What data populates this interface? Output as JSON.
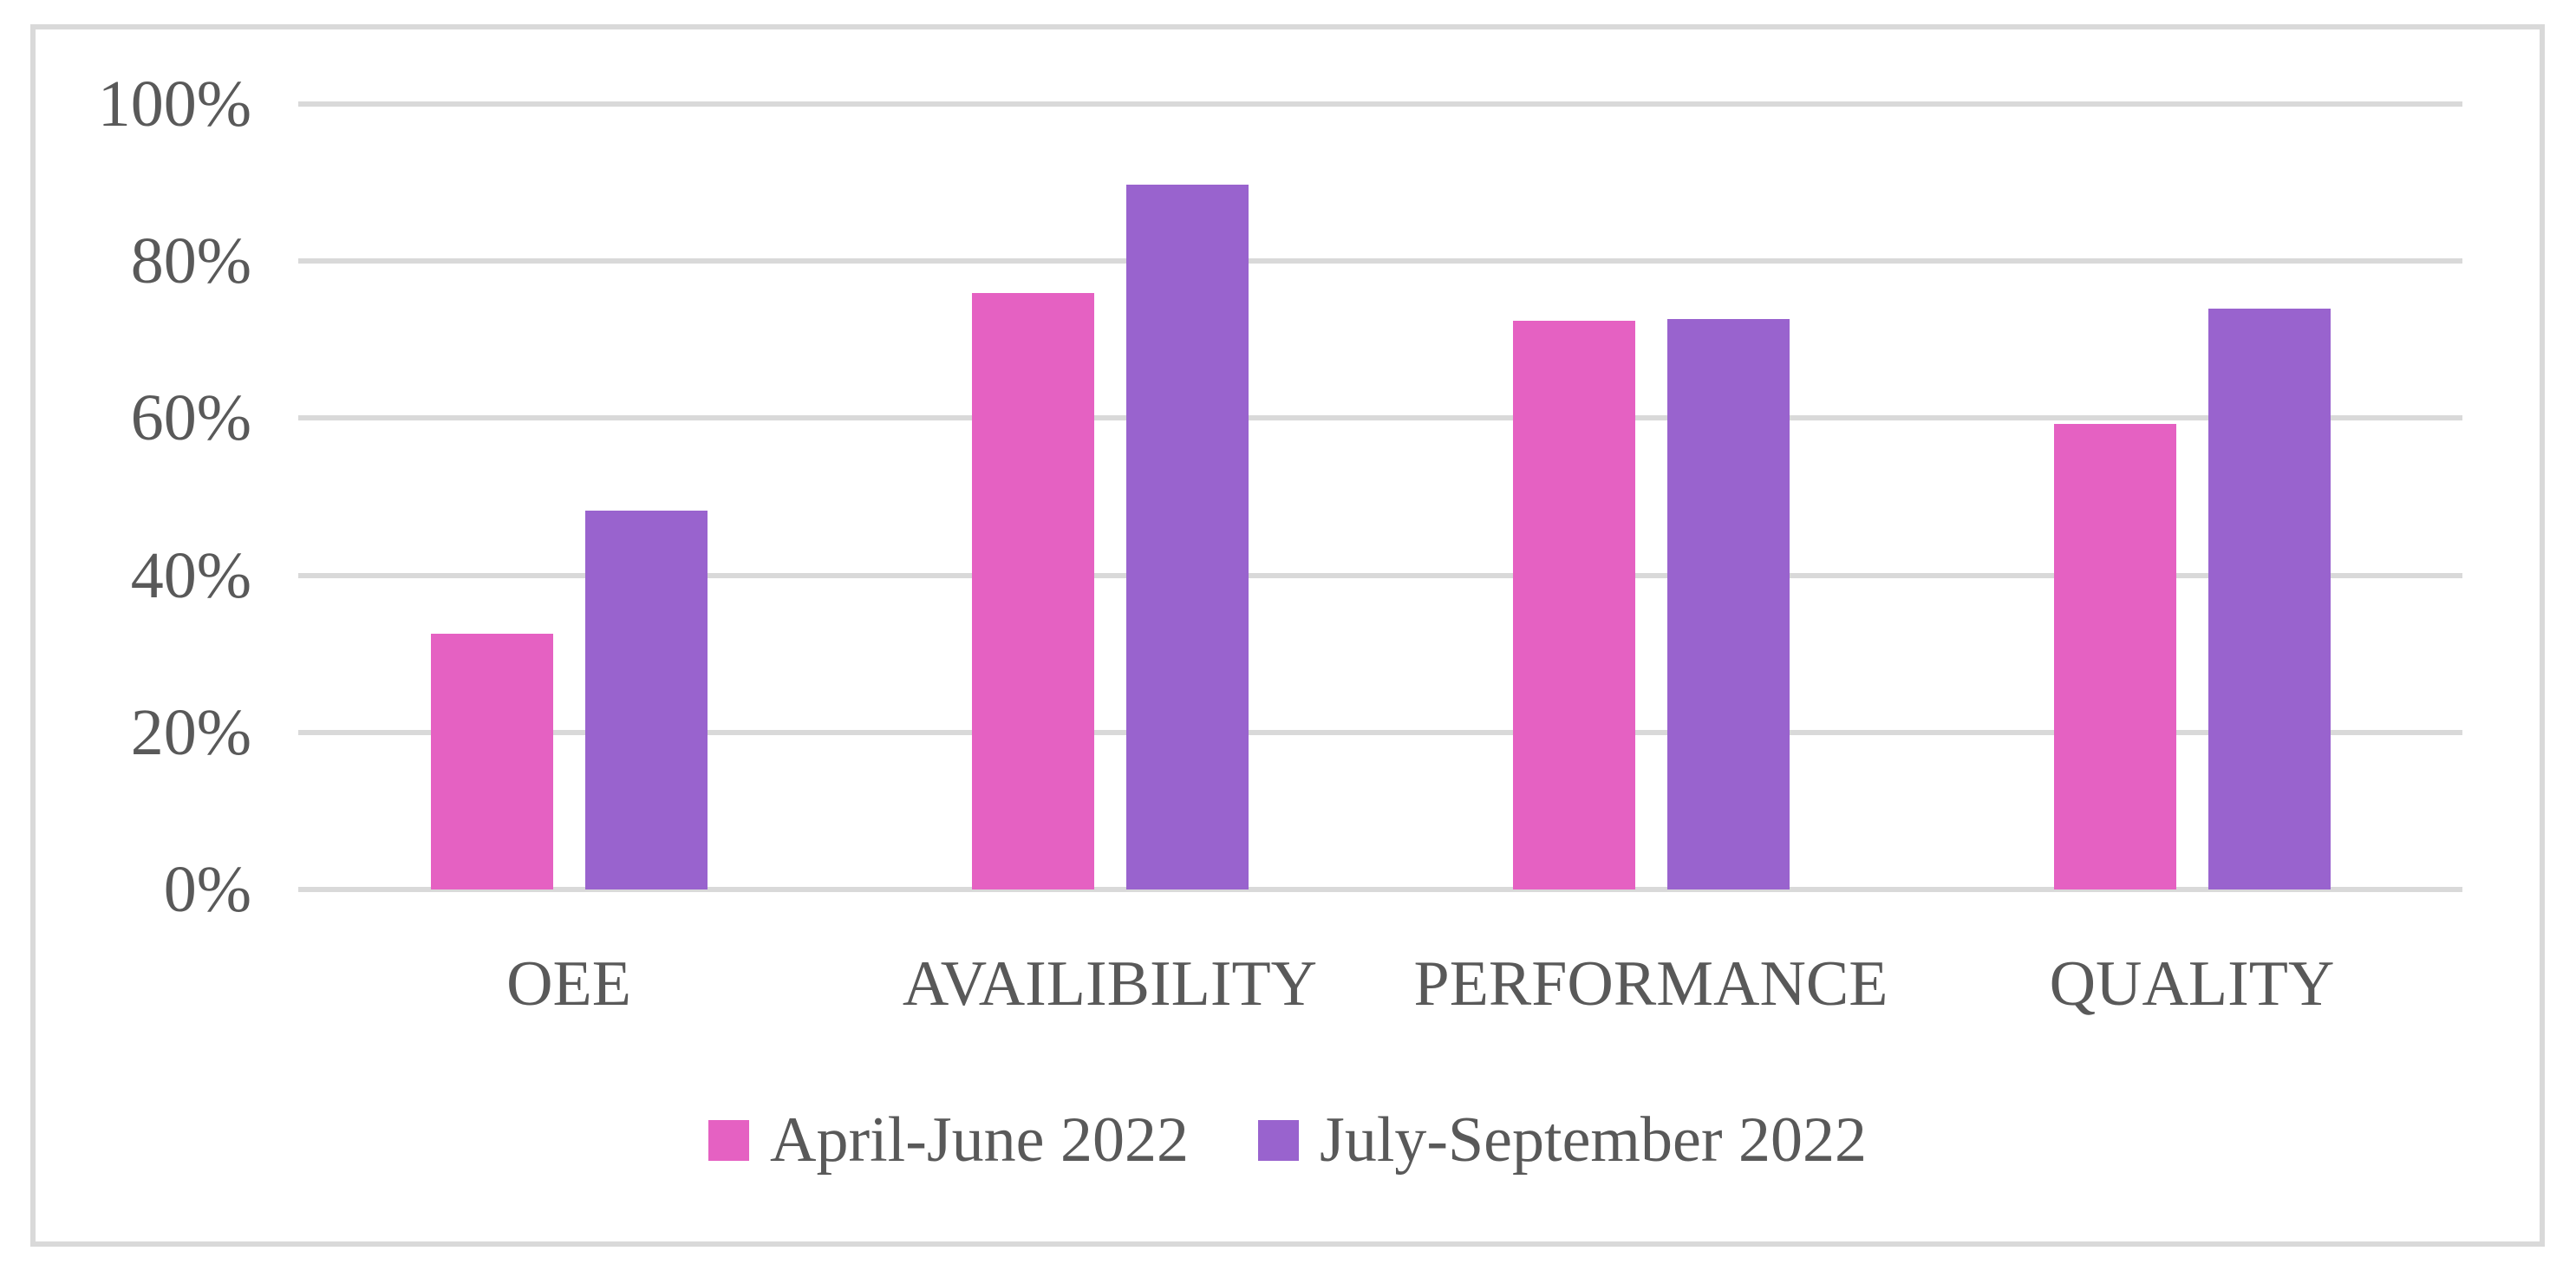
{
  "chart_data": {
    "type": "bar",
    "title": "",
    "xlabel": "",
    "ylabel": "",
    "categories": [
      "OEE",
      "AVAILIBILITY",
      "PERFORMANCE",
      "QUALITY"
    ],
    "series": [
      {
        "name": "April-June 2022",
        "color": "#E561C2",
        "values": [
          32.6,
          75.9,
          72.4,
          59.3
        ]
      },
      {
        "name": "July-September 2022",
        "color": "#9963CE",
        "values": [
          48.2,
          89.7,
          72.6,
          73.9
        ]
      }
    ],
    "ylim": [
      0,
      100
    ],
    "ytick_values": [
      0,
      20,
      40,
      60,
      80,
      100
    ],
    "ytick_labels": [
      "0%",
      "20%",
      "40%",
      "60%",
      "80%",
      "100%"
    ],
    "grid": true,
    "legend_position": "bottom"
  },
  "style": {
    "background": "#FFFFFF",
    "frame_border": "#D9D9D9",
    "gridline": "#D9D9D9",
    "text": "#595959"
  }
}
